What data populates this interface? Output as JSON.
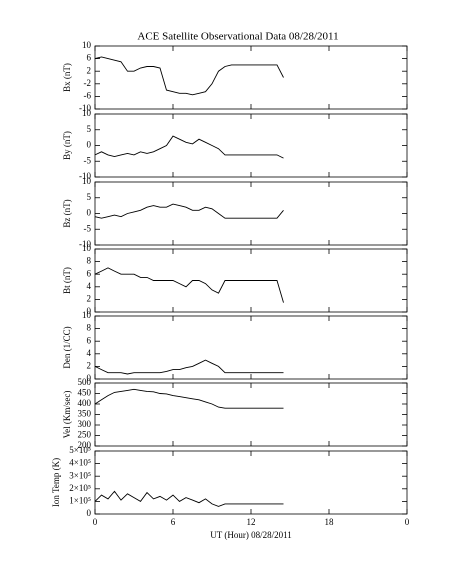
{
  "title": "ACE Satellite Observational Data   08/28/2011",
  "chart_data": [
    {
      "type": "line",
      "ylabel": "Bx (nT)",
      "xlim": [
        0,
        24
      ],
      "xticks": [
        0,
        6,
        12,
        18,
        24
      ],
      "ylim": [
        -10,
        10
      ],
      "yticks": [
        -10,
        -6,
        -2,
        2,
        6,
        10
      ],
      "color": "#000000",
      "x": [
        0,
        0.5,
        1,
        1.5,
        2,
        2.5,
        3,
        3.5,
        4,
        4.5,
        5,
        5.5,
        6,
        6.5,
        7,
        7.5,
        8,
        8.5,
        9,
        9.5,
        10,
        10.5,
        11,
        11.5,
        12,
        12.5,
        13,
        13.5,
        14,
        14.5
      ],
      "values": [
        6,
        6.5,
        6,
        5.5,
        5,
        2,
        2,
        3,
        3.5,
        3.5,
        3,
        -4,
        -4.5,
        -5,
        -5,
        -5.5,
        -5,
        -4.5,
        -2,
        2,
        3.5,
        4,
        4,
        4,
        4,
        4,
        4,
        4,
        4,
        0
      ]
    },
    {
      "type": "line",
      "ylabel": "By (nT)",
      "xlim": [
        0,
        24
      ],
      "xticks": [
        0,
        6,
        12,
        18,
        24
      ],
      "ylim": [
        -10,
        10
      ],
      "yticks": [
        -10,
        -5,
        0,
        5,
        10
      ],
      "color": "#000000",
      "x": [
        0,
        0.5,
        1,
        1.5,
        2,
        2.5,
        3,
        3.5,
        4,
        4.5,
        5,
        5.5,
        6,
        6.5,
        7,
        7.5,
        8,
        8.5,
        9,
        9.5,
        10,
        10.5,
        11,
        11.5,
        12,
        12.5,
        13,
        13.5,
        14,
        14.5
      ],
      "values": [
        -3,
        -2,
        -3,
        -3.5,
        -3,
        -2.5,
        -3,
        -2,
        -2.5,
        -2,
        -1,
        0,
        3,
        2,
        1,
        0.5,
        2,
        1,
        0,
        -1,
        -3,
        -3,
        -3,
        -3,
        -3,
        -3,
        -3,
        -3,
        -3,
        -4
      ]
    },
    {
      "type": "line",
      "ylabel": "Bz (nT)",
      "xlim": [
        0,
        24
      ],
      "xticks": [
        0,
        6,
        12,
        18,
        24
      ],
      "ylim": [
        -10,
        10
      ],
      "yticks": [
        -10,
        -5,
        0,
        5,
        10
      ],
      "color": "#000000",
      "x": [
        0,
        0.5,
        1,
        1.5,
        2,
        2.5,
        3,
        3.5,
        4,
        4.5,
        5,
        5.5,
        6,
        6.5,
        7,
        7.5,
        8,
        8.5,
        9,
        9.5,
        10,
        10.5,
        11,
        11.5,
        12,
        12.5,
        13,
        13.5,
        14,
        14.5
      ],
      "values": [
        -1,
        -1.5,
        -1,
        -0.5,
        -1,
        0,
        0.5,
        1,
        2,
        2.5,
        2,
        2,
        3,
        2.5,
        2,
        1,
        1,
        2,
        1.5,
        0,
        -1.5,
        -1.5,
        -1.5,
        -1.5,
        -1.5,
        -1.5,
        -1.5,
        -1.5,
        -1.5,
        1
      ]
    },
    {
      "type": "line",
      "ylabel": "Bt (nT)",
      "xlim": [
        0,
        24
      ],
      "xticks": [
        0,
        6,
        12,
        18,
        24
      ],
      "ylim": [
        0,
        10
      ],
      "yticks": [
        0,
        2,
        4,
        6,
        8,
        10
      ],
      "color": "#000000",
      "x": [
        0,
        0.5,
        1,
        1.5,
        2,
        2.5,
        3,
        3.5,
        4,
        4.5,
        5,
        5.5,
        6,
        6.5,
        7,
        7.5,
        8,
        8.5,
        9,
        9.5,
        10,
        10.5,
        11,
        11.5,
        12,
        12.5,
        13,
        13.5,
        14,
        14.5
      ],
      "values": [
        6,
        6.5,
        7,
        6.5,
        6,
        6,
        6,
        5.5,
        5.5,
        5,
        5,
        5,
        5,
        4.5,
        4,
        5,
        5,
        4.5,
        3.5,
        3,
        5,
        5,
        5,
        5,
        5,
        5,
        5,
        5,
        5,
        1.5
      ]
    },
    {
      "type": "line",
      "ylabel": "Den (1/CC)",
      "xlim": [
        0,
        24
      ],
      "xticks": [
        0,
        6,
        12,
        18,
        24
      ],
      "ylim": [
        0,
        10
      ],
      "yticks": [
        0,
        2,
        4,
        6,
        8,
        10
      ],
      "color": "#000000",
      "x": [
        0,
        0.5,
        1,
        1.5,
        2,
        2.5,
        3,
        3.5,
        4,
        4.5,
        5,
        5.5,
        6,
        6.5,
        7,
        7.5,
        8,
        8.5,
        9,
        9.5,
        10,
        10.5,
        11,
        11.5,
        12,
        12.5,
        13,
        13.5,
        14,
        14.5
      ],
      "values": [
        2,
        1.5,
        1,
        1,
        1,
        0.8,
        1,
        1,
        1,
        1,
        1,
        1.2,
        1.5,
        1.5,
        1.8,
        2,
        2.5,
        3,
        2.5,
        2,
        1,
        1,
        1,
        1,
        1,
        1,
        1,
        1,
        1,
        1
      ]
    },
    {
      "type": "line",
      "ylabel": "Vel (Km/sec)",
      "xlim": [
        0,
        24
      ],
      "xticks": [
        0,
        6,
        12,
        18,
        24
      ],
      "ylim": [
        200,
        500
      ],
      "yticks": [
        200,
        250,
        300,
        350,
        400,
        450,
        500
      ],
      "color": "#000000",
      "x": [
        0,
        0.5,
        1,
        1.5,
        2,
        2.5,
        3,
        3.5,
        4,
        4.5,
        5,
        5.5,
        6,
        6.5,
        7,
        7.5,
        8,
        8.5,
        9,
        9.5,
        10,
        10.5,
        11,
        11.5,
        12,
        12.5,
        13,
        13.5,
        14,
        14.5
      ],
      "values": [
        400,
        420,
        440,
        455,
        460,
        465,
        470,
        465,
        460,
        458,
        450,
        448,
        440,
        435,
        430,
        425,
        420,
        410,
        400,
        385,
        380,
        380,
        380,
        380,
        380,
        380,
        380,
        380,
        380,
        380
      ]
    },
    {
      "type": "line",
      "ylabel": "Ion Temp (K)",
      "xlabel": "UT (Hour)  08/28/2011",
      "xlim": [
        0,
        24
      ],
      "xticks": [
        0,
        6,
        12,
        18,
        {
          "value": 24,
          "label": "0"
        }
      ],
      "ylim": [
        0,
        500000
      ],
      "yticks": [
        0,
        {
          "value": 100000,
          "label": "1×10⁵"
        },
        {
          "value": 200000,
          "label": "2×10⁵"
        },
        {
          "value": 300000,
          "label": "3×10⁵"
        },
        {
          "value": 400000,
          "label": "4×10⁵"
        },
        {
          "value": 500000,
          "label": "5×10⁵"
        }
      ],
      "color": "#000000",
      "x": [
        0,
        0.5,
        1,
        1.5,
        2,
        2.5,
        3,
        3.5,
        4,
        4.5,
        5,
        5.5,
        6,
        6.5,
        7,
        7.5,
        8,
        8.5,
        9,
        9.5,
        10,
        10.5,
        11,
        11.5,
        12,
        12.5,
        13,
        13.5,
        14,
        14.5
      ],
      "values": [
        100000,
        150000,
        120000,
        180000,
        110000,
        160000,
        130000,
        100000,
        170000,
        120000,
        140000,
        110000,
        150000,
        100000,
        130000,
        110000,
        90000,
        120000,
        80000,
        60000,
        80000,
        80000,
        80000,
        80000,
        80000,
        80000,
        80000,
        80000,
        80000,
        80000
      ]
    }
  ]
}
